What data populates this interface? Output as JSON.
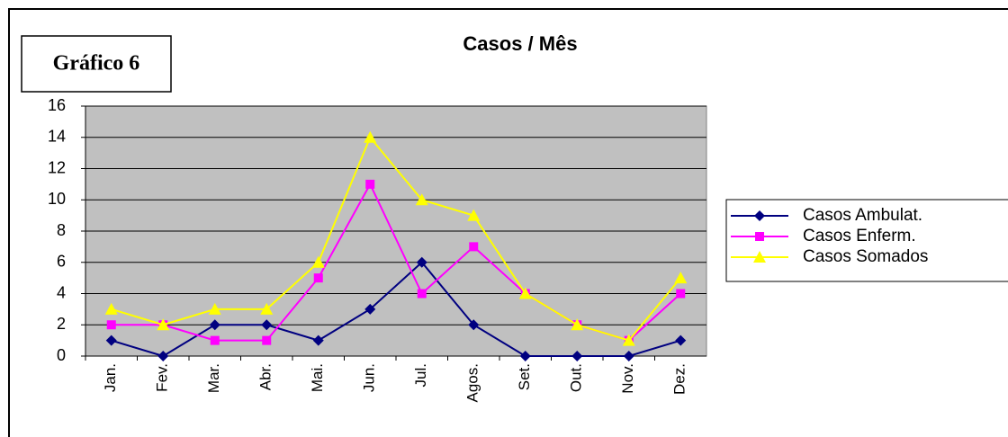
{
  "label": "Gráfico 6",
  "chart_data": {
    "type": "line",
    "title": "Casos / Mês",
    "categories": [
      "Jan.",
      "Fev.",
      "Mar.",
      "Abr.",
      "Mai.",
      "Jun.",
      "Jul.",
      "Agos.",
      "Set.",
      "Out.",
      "Nov.",
      "Dez."
    ],
    "series": [
      {
        "name": "Casos Ambulat.",
        "color": "#000080",
        "marker": "diamond",
        "values": [
          1,
          0,
          2,
          2,
          1,
          3,
          6,
          2,
          0,
          0,
          0,
          1
        ]
      },
      {
        "name": "Casos Enferm.",
        "color": "#ff00ff",
        "marker": "square",
        "values": [
          2,
          2,
          1,
          1,
          5,
          11,
          4,
          7,
          4,
          2,
          1,
          4
        ]
      },
      {
        "name": "Casos Somados",
        "color": "#ffff00",
        "marker": "triangle",
        "values": [
          3,
          2,
          3,
          3,
          6,
          14,
          10,
          9,
          4,
          2,
          1,
          5
        ]
      }
    ],
    "ylim": [
      0,
      16
    ],
    "yticks": [
      0,
      2,
      4,
      6,
      8,
      10,
      12,
      14,
      16
    ],
    "grid": true,
    "legend": "right"
  }
}
